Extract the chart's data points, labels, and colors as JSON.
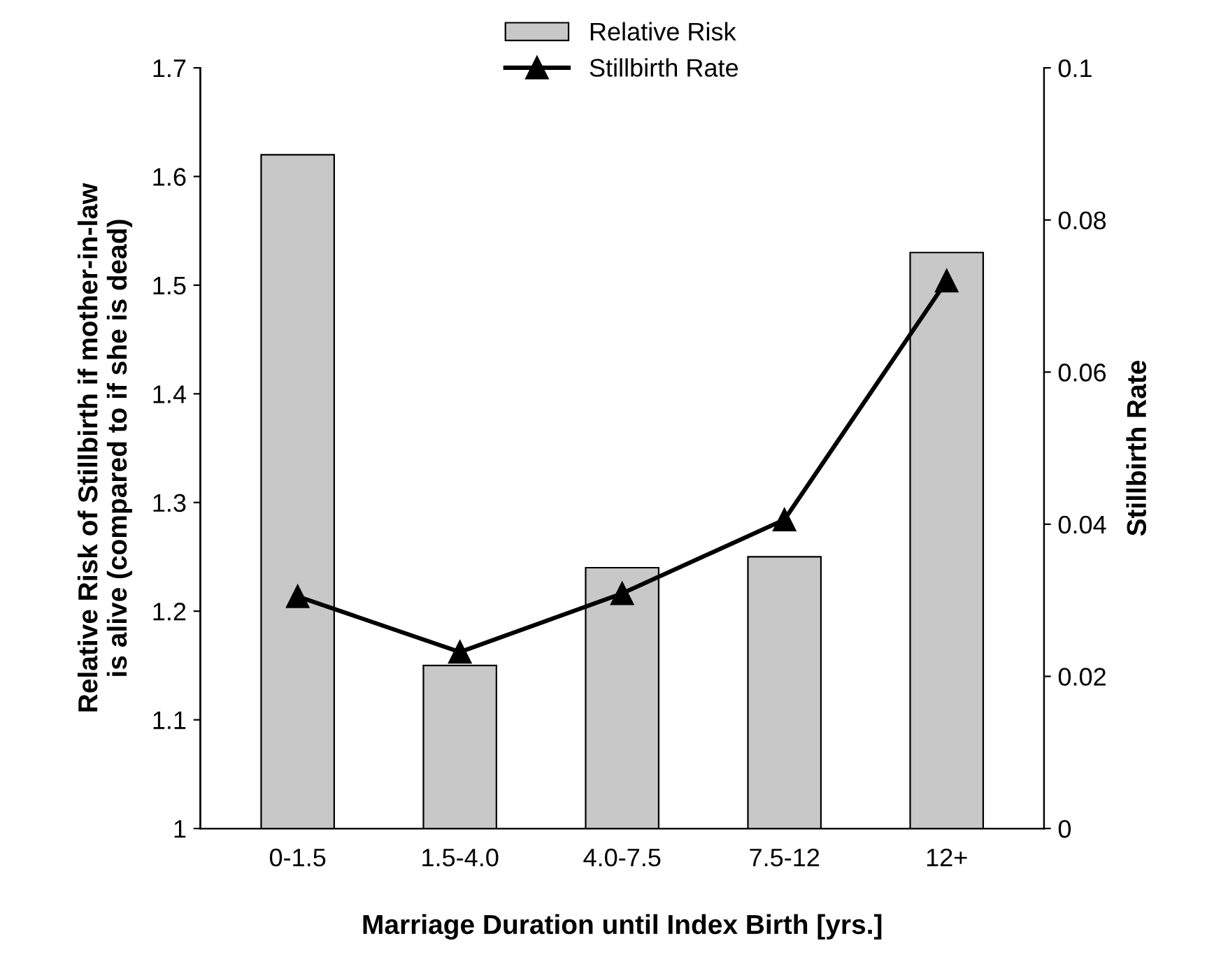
{
  "chart_data": {
    "type": "bar",
    "xlabel": "Marriage Duration until Index Birth [yrs.]",
    "ylabel": "Relative Risk of Stillbirth if mother-in-law\nis alive (compared to if she is dead)",
    "y2label": "Stillbirth Rate",
    "categories": [
      "0-1.5",
      "1.5-4.0",
      "4.0-7.5",
      "7.5-12",
      "12+"
    ],
    "series": [
      {
        "name": "Relative Risk",
        "color": "#c8c8c8",
        "values": [
          1.62,
          1.15,
          1.24,
          1.25,
          1.53
        ]
      },
      {
        "name": "Stillbirth Rate",
        "type": "line",
        "axis": "y2",
        "color": "#000000",
        "marker": "triangle",
        "values": [
          0.0305,
          0.0232,
          0.0309,
          0.0406,
          0.072
        ]
      }
    ],
    "ylim": [
      1,
      1.7
    ],
    "yticks": [
      1,
      1.1,
      1.2,
      1.3,
      1.4,
      1.5,
      1.6,
      1.7
    ],
    "y2lim": [
      0,
      0.1
    ],
    "y2ticks": [
      0,
      0.02,
      0.04,
      0.06,
      0.08,
      0.1
    ],
    "grid": false,
    "legend": "top"
  }
}
